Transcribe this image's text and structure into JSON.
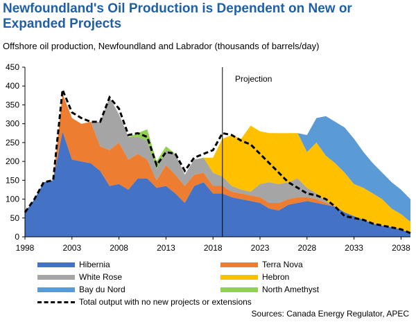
{
  "header": {
    "title": "Newfoundland's Oil Production is Dependent on New or Expanded Projects",
    "subtitle": "Offshore oil production, Newfoundland and Labrador (thousands of barrels/day)"
  },
  "annotation": "Projection",
  "sources": "Sources:  Canada Energy Regulator, APEC",
  "chart_data": {
    "type": "area",
    "stacked": true,
    "x": [
      1998,
      1999,
      2000,
      2001,
      2002,
      2003,
      2004,
      2005,
      2006,
      2007,
      2008,
      2009,
      2010,
      2011,
      2012,
      2013,
      2014,
      2015,
      2016,
      2017,
      2018,
      2019,
      2020,
      2021,
      2022,
      2023,
      2024,
      2025,
      2026,
      2027,
      2028,
      2029,
      2030,
      2031,
      2032,
      2033,
      2034,
      2035,
      2036,
      2037,
      2038,
      2039
    ],
    "xlim": [
      1998,
      2039
    ],
    "ylim": [
      0,
      450
    ],
    "x_ticks": [
      1998,
      2003,
      2008,
      2013,
      2018,
      2023,
      2028,
      2033,
      2038
    ],
    "y_ticks": [
      0,
      50,
      100,
      150,
      200,
      250,
      300,
      350,
      400,
      450
    ],
    "projection_start": 2019,
    "series": [
      {
        "name": "Hibernia",
        "color": "#4472c4",
        "values": [
          65,
          100,
          145,
          150,
          280,
          205,
          200,
          195,
          175,
          135,
          140,
          125,
          155,
          155,
          130,
          135,
          115,
          90,
          135,
          145,
          115,
          115,
          105,
          100,
          95,
          90,
          75,
          70,
          85,
          90,
          95,
          90,
          85,
          80,
          65,
          55,
          45,
          35,
          30,
          25,
          20,
          10
        ]
      },
      {
        "name": "Terra Nova",
        "color": "#ed7d31",
        "values": [
          0,
          0,
          0,
          0,
          100,
          110,
          100,
          110,
          65,
          95,
          110,
          80,
          65,
          50,
          20,
          55,
          50,
          45,
          30,
          25,
          20,
          20,
          15,
          15,
          15,
          15,
          15,
          20,
          15,
          15,
          10,
          10,
          5,
          0,
          0,
          0,
          0,
          0,
          0,
          0,
          0,
          0
        ]
      },
      {
        "name": "White Rose",
        "color": "#a5a5a5",
        "values": [
          0,
          0,
          0,
          0,
          0,
          0,
          0,
          0,
          65,
          140,
          75,
          60,
          45,
          50,
          30,
          40,
          55,
          30,
          40,
          40,
          35,
          25,
          15,
          10,
          10,
          35,
          55,
          50,
          45,
          50,
          25,
          15,
          5,
          0,
          0,
          0,
          0,
          0,
          0,
          0,
          0,
          0
        ]
      },
      {
        "name": "Hebron",
        "color": "#ffc000",
        "values": [
          0,
          0,
          0,
          0,
          0,
          0,
          0,
          0,
          0,
          0,
          0,
          0,
          0,
          0,
          0,
          0,
          0,
          0,
          0,
          0,
          40,
          100,
          135,
          135,
          175,
          140,
          130,
          135,
          130,
          120,
          95,
          135,
          120,
          115,
          105,
          85,
          85,
          80,
          70,
          50,
          40,
          30
        ]
      },
      {
        "name": "Bay du Nord",
        "color": "#5b9bd5",
        "values": [
          0,
          0,
          0,
          0,
          0,
          0,
          0,
          0,
          0,
          0,
          0,
          0,
          0,
          0,
          0,
          0,
          0,
          0,
          0,
          0,
          0,
          0,
          0,
          0,
          0,
          0,
          0,
          0,
          0,
          0,
          45,
          65,
          105,
          110,
          120,
          120,
          95,
          80,
          70,
          70,
          65,
          60
        ]
      },
      {
        "name": "North Amethyst",
        "color": "#92d050",
        "values": [
          0,
          0,
          0,
          0,
          0,
          0,
          0,
          0,
          0,
          0,
          0,
          0,
          10,
          30,
          20,
          10,
          0,
          0,
          0,
          0,
          0,
          0,
          0,
          0,
          0,
          0,
          0,
          0,
          0,
          0,
          0,
          0,
          0,
          0,
          0,
          0,
          0,
          0,
          0,
          0,
          0,
          0
        ]
      }
    ],
    "reference_line": {
      "name": "Total output with no new projects or extensions",
      "style": "dashed",
      "color": "#000000",
      "values": [
        65,
        100,
        145,
        150,
        390,
        330,
        315,
        305,
        305,
        370,
        340,
        270,
        275,
        265,
        190,
        225,
        220,
        175,
        210,
        220,
        230,
        275,
        270,
        255,
        245,
        220,
        195,
        170,
        145,
        130,
        115,
        110,
        100,
        80,
        55,
        50,
        45,
        35,
        30,
        25,
        20,
        10
      ]
    },
    "legend": [
      "Hibernia",
      "Terra Nova",
      "White Rose",
      "Hebron",
      "Bay du Nord",
      "North Amethyst",
      "Total output with no new projects or extensions"
    ],
    "legend_placement": "bottom",
    "grid": false
  }
}
